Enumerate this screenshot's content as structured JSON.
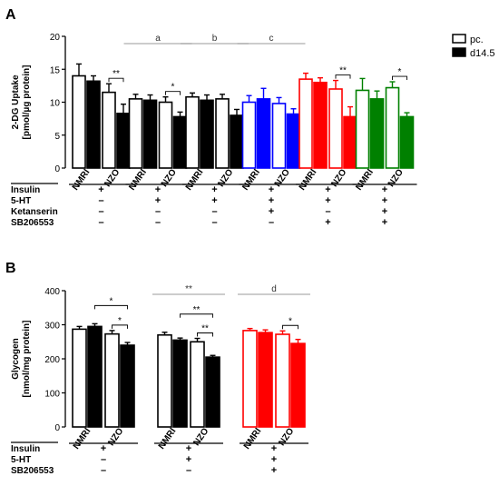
{
  "colors": {
    "black": "#000000",
    "blue": "#0000ff",
    "red": "#ff0000",
    "green": "#008000"
  },
  "legend": {
    "pc": "pc.",
    "d14": "d14.5"
  },
  "chart_data": [
    {
      "panel": "A",
      "type": "bar",
      "ylabel": "2-DG Uptake\n[pmol/µg protein]",
      "ylim": [
        0,
        20
      ],
      "yticks": [
        0,
        5,
        10,
        15,
        20
      ],
      "series_names": [
        "pc.",
        "d14.5"
      ],
      "groups": [
        {
          "color": "black",
          "categories": [
            "NMRI",
            "NZO"
          ],
          "pc": [
            14.0,
            11.5
          ],
          "pc_err": [
            1.8,
            1.3
          ],
          "d14": [
            13.2,
            8.3
          ],
          "d14_err": [
            0.8,
            1.4
          ],
          "sig": [
            {
              "text": "**",
              "span": "NZO"
            }
          ]
        },
        {
          "color": "black",
          "categories": [
            "NMRI",
            "NZO"
          ],
          "pc": [
            10.5,
            10.0
          ],
          "pc_err": [
            0.7,
            0.8
          ],
          "d14": [
            10.3,
            7.8
          ],
          "d14_err": [
            0.8,
            0.7
          ],
          "sig": [
            {
              "text": "*",
              "span": "NZO"
            }
          ]
        },
        {
          "color": "black",
          "categories": [
            "NMRI",
            "NZO"
          ],
          "pc": [
            10.8,
            10.5
          ],
          "pc_err": [
            0.6,
            0.7
          ],
          "d14": [
            10.3,
            8.0
          ],
          "d14_err": [
            0.8,
            0.9
          ],
          "sig": []
        },
        {
          "color": "blue",
          "categories": [
            "NMRI",
            "NZO"
          ],
          "pc": [
            10.0,
            9.8
          ],
          "pc_err": [
            1.0,
            0.9
          ],
          "d14": [
            10.5,
            8.2
          ],
          "d14_err": [
            1.6,
            0.8
          ],
          "sig": []
        },
        {
          "color": "red",
          "categories": [
            "NMRI",
            "NZO"
          ],
          "pc": [
            13.5,
            12.0
          ],
          "pc_err": [
            0.9,
            1.3
          ],
          "d14": [
            13.0,
            7.8
          ],
          "d14_err": [
            0.7,
            1.5
          ],
          "sig": [
            {
              "text": "**",
              "span": "NZO"
            }
          ]
        },
        {
          "color": "green",
          "categories": [
            "NMRI",
            "NZO"
          ],
          "pc": [
            11.8,
            12.2
          ],
          "pc_err": [
            1.8,
            0.9
          ],
          "d14": [
            10.5,
            7.8
          ],
          "d14_err": [
            1.2,
            0.6
          ],
          "sig": [
            {
              "text": "*",
              "span": "NZO"
            }
          ]
        }
      ],
      "group_letters": [
        {
          "text": "a",
          "groups": [
            1
          ]
        },
        {
          "text": "b",
          "groups": [
            2
          ]
        },
        {
          "text": "c",
          "groups": [
            3
          ]
        }
      ],
      "treatments": [
        {
          "label": "Insulin",
          "values": [
            "+",
            "+",
            "+",
            "+",
            "+",
            "+"
          ]
        },
        {
          "label": "5-HT",
          "values": [
            "–",
            "+",
            "+",
            "+",
            "+",
            "+"
          ]
        },
        {
          "label": "Ketanserin",
          "values": [
            "–",
            "–",
            "–",
            "+",
            "–",
            "+"
          ]
        },
        {
          "label": "SB206553",
          "values": [
            "–",
            "–",
            "–",
            "–",
            "+",
            "+"
          ]
        }
      ]
    },
    {
      "panel": "B",
      "type": "bar",
      "ylabel": "Glycogen\n[nmol/mg protein]",
      "ylim": [
        0,
        400
      ],
      "yticks": [
        0,
        100,
        200,
        300,
        400
      ],
      "series_names": [
        "pc.",
        "d14.5"
      ],
      "groups": [
        {
          "color": "black",
          "categories": [
            "NMRI",
            "NZO"
          ],
          "pc": [
            287,
            273
          ],
          "pc_err": [
            8,
            10
          ],
          "d14": [
            295,
            240
          ],
          "d14_err": [
            8,
            8
          ],
          "sig": [
            {
              "text": "*",
              "span": "NZO"
            }
          ]
        },
        {
          "color": "black",
          "categories": [
            "NMRI",
            "NZO"
          ],
          "pc": [
            270,
            250
          ],
          "pc_err": [
            8,
            10
          ],
          "d14": [
            255,
            205
          ],
          "d14_err": [
            6,
            5
          ],
          "sig": [
            {
              "text": "**",
              "span": "NZO"
            }
          ]
        },
        {
          "color": "red",
          "categories": [
            "NMRI",
            "NZO"
          ],
          "pc": [
            283,
            272
          ],
          "pc_err": [
            6,
            10
          ],
          "d14": [
            277,
            245
          ],
          "d14_err": [
            8,
            12
          ],
          "sig": [
            {
              "text": "*",
              "span": "NZO"
            }
          ]
        }
      ],
      "cross_sig": [
        {
          "text": "*",
          "group": 0,
          "from": "NMRI-d14",
          "to": "NZO-d14",
          "level": 1
        },
        {
          "text": "**",
          "group": 1,
          "from": "NMRI-d14",
          "to": "NZO-d14",
          "level": 1
        }
      ],
      "group_letters": [
        {
          "text": "**",
          "groups": [
            1
          ]
        },
        {
          "text": "d",
          "groups": [
            2
          ]
        }
      ],
      "treatments": [
        {
          "label": "Insulin",
          "values": [
            "+",
            "+",
            "+"
          ]
        },
        {
          "label": "5-HT",
          "values": [
            "–",
            "+",
            "+"
          ]
        },
        {
          "label": "SB206553",
          "values": [
            "–",
            "–",
            "+"
          ]
        }
      ]
    }
  ]
}
